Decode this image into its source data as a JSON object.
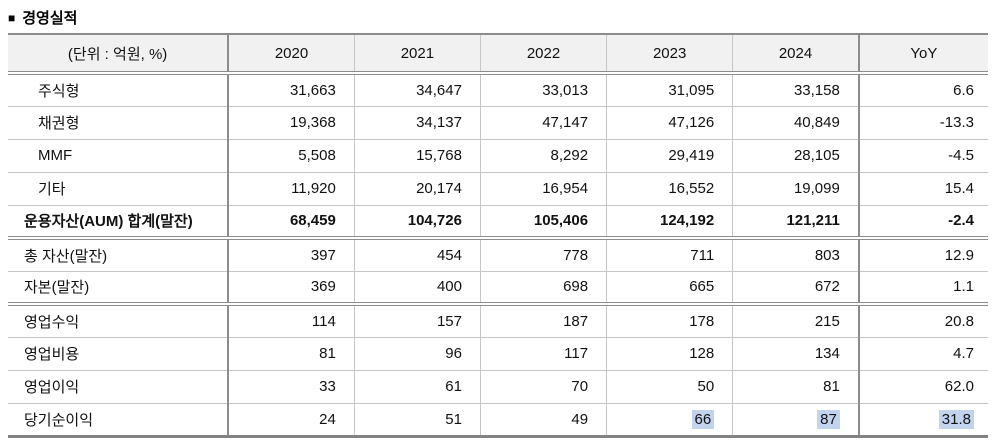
{
  "title": {
    "bullet": "■",
    "text": "경영실적"
  },
  "table": {
    "unit_header": "(단위 : 억원, %)",
    "columns": [
      "2020",
      "2021",
      "2022",
      "2023",
      "2024",
      "YoY"
    ],
    "rows": [
      {
        "label": "주식형",
        "values": [
          "31,663",
          "34,647",
          "33,013",
          "31,095",
          "33,158",
          "6.6"
        ]
      },
      {
        "label": "채권형",
        "values": [
          "19,368",
          "34,137",
          "47,147",
          "47,126",
          "40,849",
          "-13.3"
        ]
      },
      {
        "label": "MMF",
        "values": [
          "5,508",
          "15,768",
          "8,292",
          "29,419",
          "28,105",
          "-4.5"
        ]
      },
      {
        "label": "기타",
        "values": [
          "11,920",
          "20,174",
          "16,954",
          "16,552",
          "19,099",
          "15.4"
        ]
      },
      {
        "label": "운용자산(AUM) 합계(말잔)",
        "values": [
          "68,459",
          "104,726",
          "105,406",
          "124,192",
          "121,211",
          "-2.4"
        ]
      },
      {
        "label": "총 자산(말잔)",
        "values": [
          "397",
          "454",
          "778",
          "711",
          "803",
          "12.9"
        ]
      },
      {
        "label": "자본(말잔)",
        "values": [
          "369",
          "400",
          "698",
          "665",
          "672",
          "1.1"
        ]
      },
      {
        "label": "영업수익",
        "values": [
          "114",
          "157",
          "187",
          "178",
          "215",
          "20.8"
        ]
      },
      {
        "label": "영업비용",
        "values": [
          "81",
          "96",
          "117",
          "128",
          "134",
          "4.7"
        ]
      },
      {
        "label": "영업이익",
        "values": [
          "33",
          "61",
          "70",
          "50",
          "81",
          "62.0"
        ]
      },
      {
        "label": "당기순이익",
        "values": [
          "24",
          "51",
          "49",
          "66",
          "87",
          "31.8"
        ]
      }
    ],
    "highlighted_row": "당기순이익",
    "highlighted_values": [
      "66",
      "87",
      "31.8"
    ],
    "colors": {
      "header_bg": "#f1f1f1",
      "highlight_bg": "#c2d3ee",
      "grid": "#c6c6c6",
      "strong_border": "#8c8c8c"
    }
  }
}
